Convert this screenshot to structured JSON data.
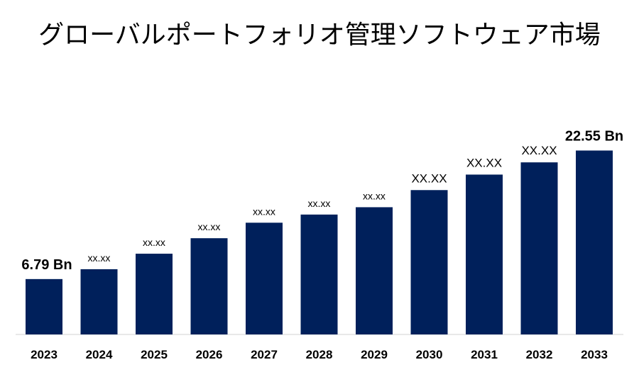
{
  "chart_data": {
    "type": "bar",
    "title": "グローバルポートフォリオ管理ソフトウェア市場",
    "categories": [
      "2023",
      "2024",
      "2025",
      "2026",
      "2027",
      "2028",
      "2029",
      "2030",
      "2031",
      "2032",
      "2033"
    ],
    "values": [
      6.79,
      8.0,
      9.9,
      11.8,
      13.7,
      14.7,
      15.6,
      17.7,
      19.6,
      21.1,
      22.55
    ],
    "data_labels": [
      "6.79 Bn",
      "xx.xx",
      "xx.xx",
      "xx.xx",
      "xx.xx",
      "xx.xx",
      "xx.xx",
      "XX.XX",
      "XX.XX",
      "XX.XX",
      "22.55 Bn"
    ],
    "label_sizes": [
      "big",
      "small",
      "small",
      "small",
      "small",
      "small",
      "small",
      "mid",
      "mid",
      "mid",
      "big"
    ],
    "ylim": [
      0,
      24.5
    ],
    "bar_color": "#00205b",
    "grid": false
  }
}
